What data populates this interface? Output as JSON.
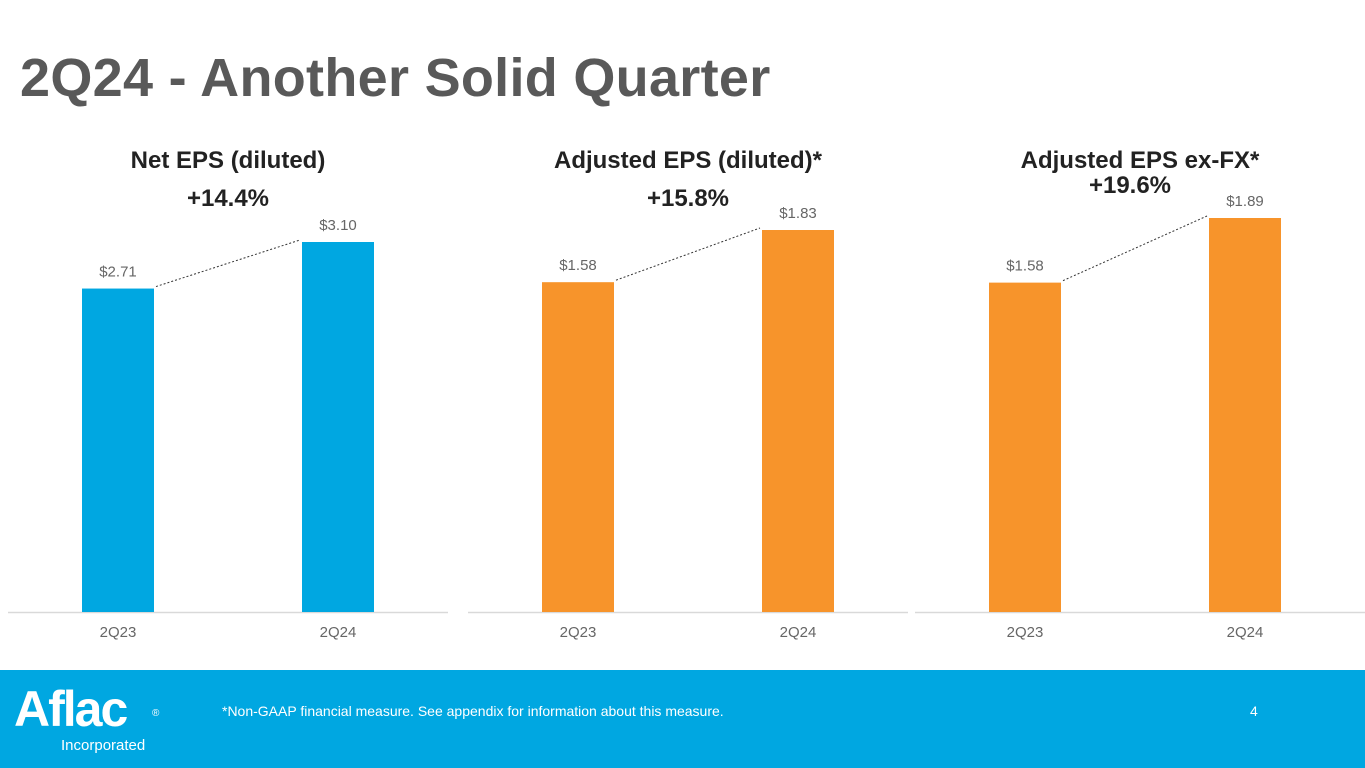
{
  "title": "2Q24 - Another Solid Quarter",
  "colors": {
    "blue": "#00A7E1",
    "orange": "#F7942B",
    "axis": "#d9d9d9",
    "label": "#666666",
    "footer": "#00A7E1"
  },
  "chart_data": [
    {
      "type": "bar",
      "title": "Net EPS (diluted)",
      "growth_label": "+14.4%",
      "categories": [
        "2Q23",
        "2Q24"
      ],
      "values": [
        2.71,
        3.1
      ],
      "value_labels": [
        "$2.71",
        "$3.10"
      ],
      "color": "#00A7E1",
      "ylim": [
        0,
        3.3
      ]
    },
    {
      "type": "bar",
      "title": "Adjusted EPS (diluted)*",
      "growth_label": "+15.8%",
      "categories": [
        "2Q23",
        "2Q24"
      ],
      "values": [
        1.58,
        1.83
      ],
      "value_labels": [
        "$1.58",
        "$1.83"
      ],
      "color": "#F7942B",
      "ylim": [
        0,
        1.95
      ]
    },
    {
      "type": "bar",
      "title": "Adjusted EPS ex-FX*",
      "growth_label": "+19.6%",
      "categories": [
        "2Q23",
        "2Q24"
      ],
      "values": [
        1.58,
        1.89
      ],
      "value_labels": [
        "$1.58",
        "$1.89"
      ],
      "color": "#F7942B",
      "ylim": [
        0,
        1.95
      ]
    }
  ],
  "footer": {
    "logo_text": "Aflac",
    "logo_reg": "®",
    "logo_sub": "Incorporated",
    "footnote": "*Non-GAAP financial measure. See appendix for information about this measure.",
    "page_number": "4"
  }
}
